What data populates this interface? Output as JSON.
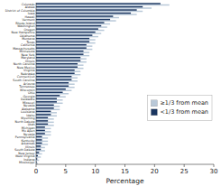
{
  "chart_data": {
    "type": "bar",
    "orientation": "horizontal",
    "categories": [
      "Colorado",
      "Alaska",
      "District of Columbia",
      "Iowa",
      "Hawaii",
      "Vermont",
      "Rhode Island",
      "Washington",
      "Oregon",
      "New Hampshire",
      "Oklahoma",
      "Montana",
      "Texas",
      "California",
      "Massachusetts",
      "Minnesota",
      "New York",
      "Maryland",
      "Illinois",
      "North Carolina",
      "New Mexico",
      "Virginia",
      "Nebraska",
      "Connecticut",
      "South Carolina",
      "Arizona",
      "Tennessee",
      "Wisconsin",
      "Ohio",
      "Georgia",
      "Delaware",
      "Missouri",
      "Nevada",
      "Alabama",
      "Louisiana",
      "Idaho",
      "Wyoming",
      "North Dakota",
      "Utah",
      "Michigan",
      "Mo Apen",
      "Nevada",
      "Pennsylvania",
      "Kentucky",
      "Arkansas",
      "Illinois",
      "South Dakota",
      "New Jersey",
      "West Virginia",
      "Indiana",
      "Mississippi"
    ],
    "series": [
      {
        "name": "≥1/3 from mean",
        "color": "#b8c8d8",
        "values": [
          22.5,
          19.5,
          18.0,
          17.0,
          14.0,
          13.5,
          12.5,
          12.0,
          11.5,
          11.0,
          10.5,
          10.0,
          10.0,
          9.5,
          9.5,
          9.0,
          9.0,
          8.5,
          8.5,
          8.0,
          8.0,
          7.5,
          7.5,
          7.0,
          7.0,
          6.5,
          6.5,
          6.0,
          5.5,
          5.0,
          4.5,
          4.5,
          4.0,
          4.0,
          3.5,
          3.5,
          3.0,
          3.0,
          3.0,
          2.5,
          2.5,
          2.5,
          2.0,
          2.0,
          2.0,
          1.5,
          1.5,
          1.0,
          0.8,
          0.5,
          0.3
        ]
      },
      {
        "name": "<1/3 from mean",
        "color": "#1a3560",
        "values": [
          21.0,
          18.0,
          17.0,
          16.0,
          13.0,
          12.5,
          11.5,
          11.0,
          10.5,
          10.0,
          9.5,
          9.0,
          9.0,
          8.5,
          8.5,
          8.0,
          8.0,
          7.5,
          7.5,
          7.0,
          7.0,
          6.5,
          6.5,
          6.0,
          6.0,
          5.5,
          5.5,
          5.0,
          4.5,
          4.0,
          3.5,
          3.5,
          3.0,
          3.0,
          2.5,
          2.5,
          2.0,
          2.0,
          2.0,
          1.5,
          1.5,
          1.5,
          1.0,
          1.0,
          1.0,
          0.8,
          0.8,
          0.5,
          0.3,
          0.2,
          0.1
        ]
      }
    ],
    "x_label": "Percentage",
    "xlim": [
      0,
      30
    ],
    "xticks": [
      0,
      5,
      10,
      15,
      20,
      25,
      30
    ],
    "legend": "right",
    "grid": false
  }
}
